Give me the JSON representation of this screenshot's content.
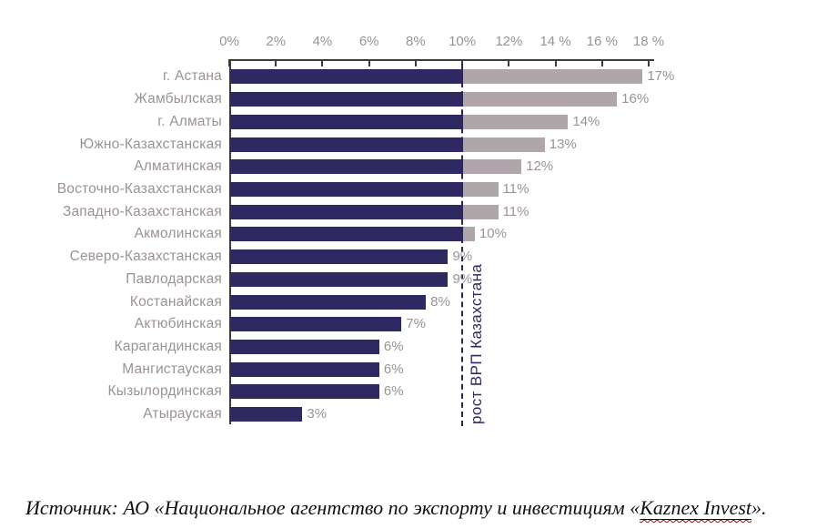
{
  "chart_data": {
    "type": "bar",
    "orientation": "horizontal",
    "title": "",
    "xlabel": "",
    "ylabel": "",
    "xlim": [
      0,
      18
    ],
    "grid": false,
    "legend": null,
    "categories": [
      "г. Астана",
      "Жамбылская",
      "г. Алматы",
      "Южно-Казахстанская",
      "Алматинская",
      "Восточно-Казахстанская",
      "Западно-Казахстанская",
      "Акмолинская",
      "Северо-Казахстанская",
      "Павлодарская",
      "Костанайская",
      "Актюбинская",
      "Карагандинская",
      "Мангистауская",
      "Кызылординская",
      "Атырауская"
    ],
    "values": [
      17,
      16,
      14,
      13,
      12,
      11,
      11,
      10,
      9,
      9,
      8,
      7,
      6,
      6,
      6,
      3
    ],
    "value_labels": [
      "17%",
      "16%",
      "14%",
      "13%",
      "12%",
      "11%",
      "11%",
      "10%",
      "9%",
      "9%",
      "8%",
      "7%",
      "6%",
      "6%",
      "6%",
      "3%"
    ],
    "bar_end_pct": [
      17.7,
      16.6,
      14.5,
      13.5,
      12.5,
      11.5,
      11.5,
      10.5,
      9.35,
      9.35,
      8.4,
      7.35,
      6.4,
      6.4,
      6.4,
      3.1
    ],
    "x_ticks": [
      {
        "pct": 0,
        "label": "0%"
      },
      {
        "pct": 2,
        "label": "2%"
      },
      {
        "pct": 4,
        "label": "4%"
      },
      {
        "pct": 6,
        "label": "6%"
      },
      {
        "pct": 8,
        "label": "8%"
      },
      {
        "pct": 10,
        "label": "10%"
      },
      {
        "pct": 12,
        "label": "12%"
      },
      {
        "pct": 14,
        "label": "14 %"
      },
      {
        "pct": 16,
        "label": "16 %"
      },
      {
        "pct": 18,
        "label": "18 %"
      }
    ],
    "threshold": {
      "pct": 10,
      "label": "рост ВРП Казахстана"
    },
    "colors": {
      "bar_below_threshold": "#2e2960",
      "bar_above_threshold": "#b0a5ab",
      "labels_gray": "#9c9292",
      "axis": "#3b3b3b",
      "threshold_line": "#2b2553",
      "threshold_label": "#2e2960"
    }
  },
  "source_note": {
    "prefix": "Источник: АО «Национальное агентство по экспорту и инвестициям «",
    "term": "Kaznex Invest",
    "suffix": "»."
  }
}
